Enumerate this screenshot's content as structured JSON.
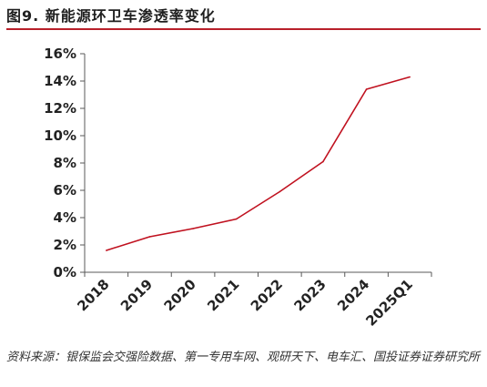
{
  "figure": {
    "title": "图9. 新能源环卫车渗透率变化",
    "source": "资料来源：银保监会交强险数据、第一专用车网、观研天下、电车汇、国投证券证券研究所"
  },
  "colors": {
    "line": "#c0111f",
    "rule": "#b8202a",
    "axis": "#595959"
  },
  "chart_data": {
    "type": "line",
    "categories": [
      "2018",
      "2019",
      "2020",
      "2021",
      "2022",
      "2023",
      "2024",
      "2025Q1"
    ],
    "series": [
      {
        "values": [
          1.6,
          2.6,
          3.2,
          3.9,
          5.9,
          8.1,
          13.4,
          14.3
        ]
      }
    ],
    "yticks": [
      "0%",
      "2%",
      "4%",
      "6%",
      "8%",
      "10%",
      "12%",
      "14%",
      "16%"
    ],
    "ylim": [
      0,
      16
    ],
    "unit": "%",
    "grid": false,
    "legend": "none",
    "title": "",
    "xlabel": "",
    "ylabel": ""
  }
}
